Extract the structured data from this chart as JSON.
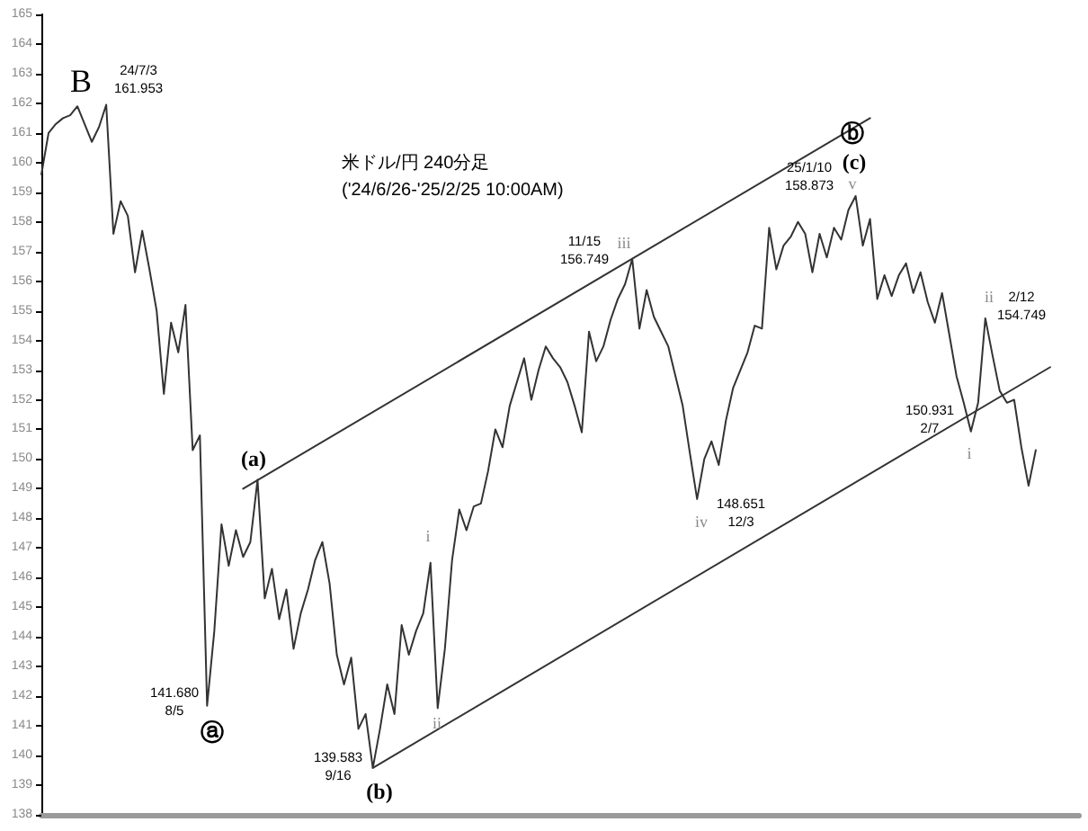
{
  "chart_data": {
    "type": "line",
    "title": "米ドル/円 240分足",
    "subtitle": "('24/6/26-'25/2/25 10:00AM)",
    "categories": [
      null,
      null,
      null,
      null,
      null,
      null,
      null,
      null,
      null,
      null,
      null,
      null,
      null,
      null,
      null,
      null,
      null,
      null,
      null,
      null,
      null,
      null,
      null,
      null,
      null,
      null,
      null,
      null,
      null,
      null,
      null,
      null,
      null,
      null,
      null,
      null,
      null,
      null,
      null,
      null,
      null,
      null,
      null,
      null,
      null,
      null,
      null,
      null,
      null,
      null,
      null,
      null,
      null,
      null,
      null,
      null,
      null,
      null,
      null,
      null,
      null,
      null,
      null,
      null,
      null,
      null,
      null,
      null,
      null,
      null,
      null,
      null,
      null,
      null,
      null,
      null,
      null,
      null,
      null,
      null,
      null,
      null,
      null,
      null,
      null,
      null,
      null,
      null,
      null,
      null,
      null,
      null,
      null,
      null,
      null,
      null,
      null,
      null,
      null,
      null,
      null,
      null,
      null,
      null,
      null,
      null,
      null,
      null,
      null,
      null,
      null,
      null,
      null,
      null,
      null,
      null,
      null,
      null,
      null,
      null,
      null,
      null,
      null,
      null,
      null,
      null,
      null,
      null,
      null,
      null,
      null,
      null,
      null,
      null,
      null,
      null,
      null,
      null,
      null,
      null,
      null,
      null,
      null,
      null,
      null
    ],
    "series": [
      {
        "color": "#333333",
        "values": [
          159.6,
          161.0,
          161.3,
          161.5,
          161.6,
          161.9,
          161.3,
          160.7,
          161.2,
          161.953,
          157.6,
          158.7,
          158.2,
          156.3,
          157.7,
          156.4,
          155.0,
          152.2,
          154.6,
          153.6,
          155.2,
          150.3,
          150.8,
          141.68,
          144.2,
          147.8,
          146.4,
          147.6,
          146.7,
          147.2,
          149.3,
          145.3,
          146.3,
          144.6,
          145.6,
          143.6,
          144.8,
          145.6,
          146.6,
          147.2,
          145.8,
          143.4,
          142.4,
          143.3,
          140.9,
          141.4,
          139.583,
          140.9,
          142.4,
          141.4,
          144.4,
          143.4,
          144.2,
          144.8,
          146.5,
          141.6,
          143.6,
          146.6,
          148.3,
          147.6,
          148.4,
          148.5,
          149.6,
          151.0,
          150.4,
          151.8,
          152.6,
          153.4,
          152.0,
          153.0,
          153.8,
          153.4,
          153.1,
          152.6,
          151.8,
          150.9,
          154.3,
          153.3,
          153.8,
          154.7,
          155.4,
          155.9,
          156.749,
          154.4,
          155.7,
          154.8,
          154.3,
          153.8,
          152.8,
          151.8,
          150.2,
          148.651,
          150.0,
          150.6,
          149.8,
          151.3,
          152.4,
          153.0,
          153.6,
          154.5,
          154.4,
          157.8,
          156.4,
          157.2,
          157.5,
          158.0,
          157.6,
          156.3,
          157.6,
          156.8,
          157.8,
          157.4,
          158.4,
          158.873,
          157.2,
          158.1,
          155.4,
          156.2,
          155.5,
          156.2,
          156.6,
          155.6,
          156.3,
          155.3,
          154.6,
          155.6,
          154.2,
          152.8,
          151.9,
          150.931,
          151.9,
          154.749,
          153.5,
          152.3,
          151.9,
          152.0,
          150.4,
          149.1,
          150.3,
          null,
          null,
          null,
          null,
          null,
          null
        ]
      },
      {
        "type": "line",
        "color": "#333333",
        "values": [
          null,
          null,
          null,
          null,
          null,
          null,
          null,
          null,
          null,
          null,
          null,
          null,
          null,
          null,
          null,
          null,
          null,
          null,
          null,
          null,
          null,
          null,
          null,
          null,
          null,
          null,
          null,
          null,
          149.0,
          null,
          null,
          null,
          null,
          null,
          null,
          null,
          null,
          null,
          null,
          null,
          null,
          null,
          null,
          null,
          null,
          null,
          null,
          null,
          null,
          null,
          null,
          null,
          null,
          null,
          null,
          null,
          null,
          null,
          null,
          null,
          null,
          null,
          null,
          null,
          null,
          null,
          null,
          null,
          null,
          null,
          null,
          null,
          null,
          null,
          null,
          null,
          null,
          null,
          null,
          null,
          null,
          null,
          null,
          null,
          null,
          null,
          null,
          null,
          null,
          null,
          null,
          null,
          null,
          null,
          null,
          null,
          null,
          null,
          null,
          null,
          null,
          null,
          null,
          null,
          null,
          null,
          null,
          null,
          null,
          null,
          null,
          null,
          null,
          null,
          null,
          161.5,
          null,
          null,
          null,
          null,
          null,
          null,
          null,
          null,
          null,
          null,
          null,
          null,
          null,
          null,
          null,
          null,
          null,
          null,
          null,
          null,
          null,
          null,
          null,
          null,
          null,
          null,
          null,
          null,
          null
        ]
      },
      {
        "type": "line",
        "color": "#333333",
        "values": [
          null,
          null,
          null,
          null,
          null,
          null,
          null,
          null,
          null,
          null,
          null,
          null,
          null,
          null,
          null,
          null,
          null,
          null,
          null,
          null,
          null,
          null,
          null,
          null,
          null,
          null,
          null,
          null,
          null,
          null,
          null,
          null,
          null,
          null,
          null,
          null,
          null,
          null,
          null,
          null,
          null,
          null,
          null,
          null,
          null,
          null,
          139.583,
          null,
          null,
          null,
          null,
          null,
          null,
          null,
          null,
          null,
          null,
          null,
          null,
          null,
          null,
          null,
          null,
          null,
          null,
          null,
          null,
          null,
          null,
          null,
          null,
          null,
          null,
          null,
          null,
          null,
          null,
          null,
          null,
          null,
          null,
          null,
          null,
          null,
          null,
          null,
          null,
          null,
          null,
          null,
          null,
          null,
          null,
          null,
          null,
          null,
          null,
          null,
          null,
          null,
          null,
          null,
          null,
          null,
          null,
          null,
          null,
          null,
          null,
          null,
          null,
          null,
          null,
          null,
          null,
          null,
          null,
          null,
          null,
          null,
          null,
          null,
          null,
          null,
          null,
          null,
          null,
          null,
          null,
          null,
          null,
          null,
          null,
          null,
          null,
          null,
          null,
          null,
          null,
          null,
          153.1,
          null,
          null,
          null,
          null
        ]
      }
    ],
    "ylim": [
      138,
      165
    ],
    "yticks": [
      138,
      139,
      140,
      141,
      142,
      143,
      144,
      145,
      146,
      147,
      148,
      149,
      150,
      151,
      152,
      153,
      154,
      155,
      156,
      157,
      158,
      159,
      160,
      161,
      162,
      163,
      164,
      165
    ],
    "tick_labels": "y",
    "grid": false,
    "line_style": "solid",
    "annotations": [
      "B",
      "24/7/3\n161.953",
      "(a)",
      "141.680\n8/5",
      "ⓐ",
      "139.583\n9/16",
      "(b)",
      "i",
      "ii",
      "11/15\n156.749",
      "iii",
      "iv",
      "148.651\n12/3",
      "ⓑ",
      "(c)",
      "25/1/10\n158.873",
      "v",
      "150.931\n2/7",
      "i",
      "ii",
      "2/12\n154.749"
    ]
  }
}
